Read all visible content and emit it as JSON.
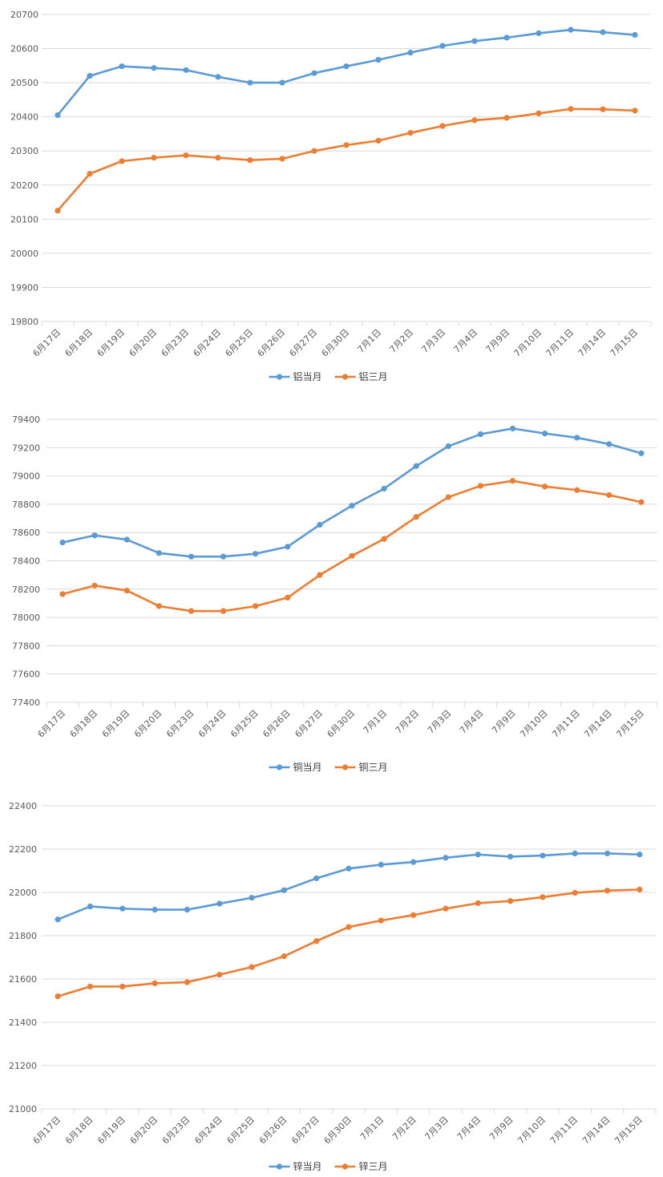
{
  "colors": {
    "series_1": "#5b9bd5",
    "series_2": "#ed7d31",
    "grid": "#d9d9d9",
    "text": "#595959"
  },
  "chart_data": [
    {
      "type": "line",
      "title": "",
      "xlabel": "",
      "ylabel": "",
      "ylim": [
        19800,
        20700
      ],
      "yticks": [
        19800,
        19900,
        20000,
        20100,
        20200,
        20300,
        20400,
        20500,
        20600,
        20700
      ],
      "grid": true,
      "legend_position": "bottom",
      "categories": [
        "6月17日",
        "6月18日",
        "6月19日",
        "6月20日",
        "6月23日",
        "6月24日",
        "6月25日",
        "6月26日",
        "6月27日",
        "6月30日",
        "7月1日",
        "7月2日",
        "7月3日",
        "7月4日",
        "7月9日",
        "7月10日",
        "7月11日",
        "7月14日",
        "7月15日"
      ],
      "series": [
        {
          "name": "铝当月",
          "values": [
            20405,
            20520,
            20548,
            20543,
            20537,
            20517,
            20500,
            20500,
            20528,
            20548,
            20567,
            20588,
            20608,
            20622,
            20632,
            20645,
            20655,
            20648,
            20640
          ]
        },
        {
          "name": "铝三月",
          "values": [
            20125,
            20233,
            20270,
            20280,
            20287,
            20280,
            20273,
            20277,
            20300,
            20317,
            20330,
            20353,
            20373,
            20390,
            20397,
            20410,
            20423,
            20422,
            20418
          ]
        }
      ]
    },
    {
      "type": "line",
      "title": "",
      "xlabel": "",
      "ylabel": "",
      "ylim": [
        77400,
        79400
      ],
      "yticks": [
        77400,
        77600,
        77800,
        78000,
        78200,
        78400,
        78600,
        78800,
        79000,
        79200,
        79400
      ],
      "grid": true,
      "legend_position": "bottom",
      "categories": [
        "6月17日",
        "6月18日",
        "6月19日",
        "6月20日",
        "6月23日",
        "6月24日",
        "6月25日",
        "6月26日",
        "6月27日",
        "6月30日",
        "7月1日",
        "7月2日",
        "7月3日",
        "7月4日",
        "7月9日",
        "7月10日",
        "7月11日",
        "7月14日",
        "7月15日"
      ],
      "series": [
        {
          "name": "铜当月",
          "values": [
            78530,
            78580,
            78550,
            78455,
            78430,
            78430,
            78450,
            78500,
            78655,
            78790,
            78910,
            79070,
            79210,
            79295,
            79335,
            79300,
            79270,
            79225,
            79160
          ]
        },
        {
          "name": "铜三月",
          "values": [
            78165,
            78225,
            78190,
            78080,
            78045,
            78045,
            78080,
            78140,
            78300,
            78435,
            78555,
            78710,
            78850,
            78930,
            78965,
            78925,
            78900,
            78865,
            78815
          ]
        }
      ]
    },
    {
      "type": "line",
      "title": "",
      "xlabel": "",
      "ylabel": "",
      "ylim": [
        21000,
        22400
      ],
      "yticks": [
        21000,
        21200,
        21400,
        21600,
        21800,
        22000,
        22200,
        22400
      ],
      "grid": true,
      "legend_position": "bottom",
      "categories": [
        "6月17日",
        "6月18日",
        "6月19日",
        "6月20日",
        "6月23日",
        "6月24日",
        "6月25日",
        "6月26日",
        "6月27日",
        "6月30日",
        "7月1日",
        "7月2日",
        "7月3日",
        "7月4日",
        "7月9日",
        "7月10日",
        "7月11日",
        "7月14日",
        "7月15日"
      ],
      "series": [
        {
          "name": "锌当月",
          "values": [
            21875,
            21935,
            21925,
            21920,
            21920,
            21948,
            21975,
            22010,
            22065,
            22110,
            22128,
            22140,
            22160,
            22175,
            22165,
            22170,
            22180,
            22180,
            22175
          ]
        },
        {
          "name": "锌三月",
          "values": [
            21520,
            21565,
            21565,
            21580,
            21585,
            21620,
            21655,
            21705,
            21775,
            21840,
            21870,
            21895,
            21925,
            21950,
            21960,
            21978,
            21998,
            22008,
            22013
          ]
        }
      ]
    }
  ]
}
